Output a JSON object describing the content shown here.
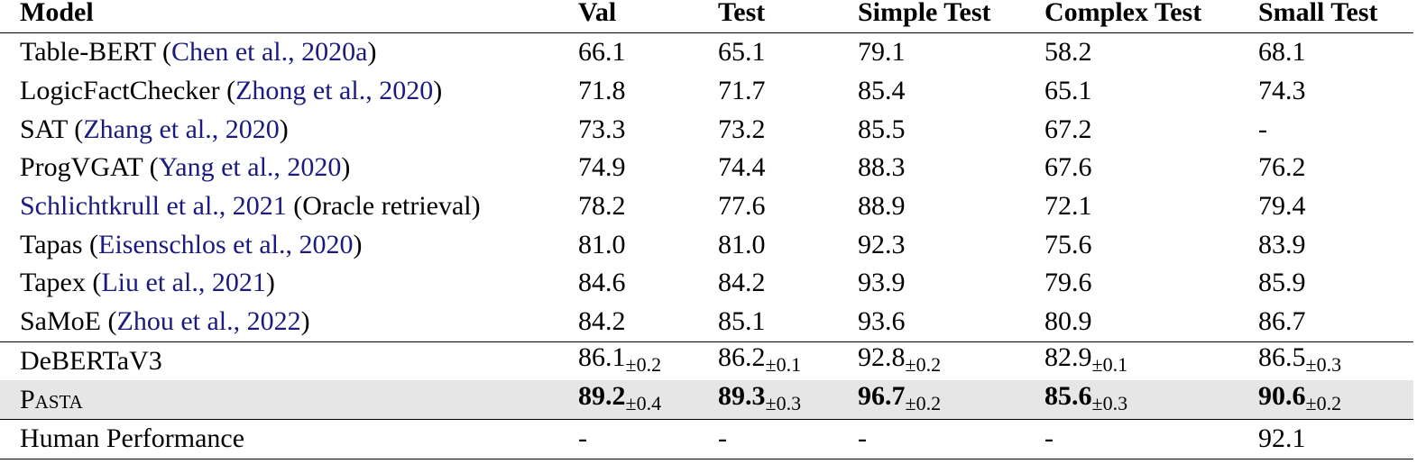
{
  "table": {
    "header": [
      "Model",
      "Val",
      "Test",
      "Simple Test",
      "Complex Test",
      "Small Test"
    ],
    "groups": [
      {
        "rows": [
          {
            "model": [
              {
                "text": "Table-BERT ("
              },
              {
                "text": "Chen et al., 2020a",
                "style": "cite"
              },
              {
                "text": ")"
              }
            ],
            "cells": [
              "66.1",
              "65.1",
              "79.1",
              "58.2",
              "68.1"
            ]
          },
          {
            "model": [
              {
                "text": "LogicFactChecker ("
              },
              {
                "text": "Zhong et al., 2020",
                "style": "cite"
              },
              {
                "text": ")"
              }
            ],
            "cells": [
              "71.8",
              "71.7",
              "85.4",
              "65.1",
              "74.3"
            ]
          },
          {
            "model": [
              {
                "text": "SAT ("
              },
              {
                "text": "Zhang et al., 2020",
                "style": "cite"
              },
              {
                "text": ")"
              }
            ],
            "cells": [
              "73.3",
              "73.2",
              "85.5",
              "67.2",
              "-"
            ]
          },
          {
            "model": [
              {
                "text": "ProgVGAT ("
              },
              {
                "text": "Yang et al., 2020",
                "style": "cite"
              },
              {
                "text": ")"
              }
            ],
            "cells": [
              "74.9",
              "74.4",
              "88.3",
              "67.6",
              "76.2"
            ]
          },
          {
            "model": [
              {
                "text": "Schlichtkrull et al., 2021",
                "style": "cite"
              },
              {
                "text": " (Oracle retrieval)"
              }
            ],
            "cells": [
              "78.2",
              "77.6",
              "88.9",
              "72.1",
              "79.4"
            ]
          },
          {
            "model": [
              {
                "text": "Tapas ("
              },
              {
                "text": "Eisenschlos et al., 2020",
                "style": "cite"
              },
              {
                "text": ")"
              }
            ],
            "cells": [
              "81.0",
              "81.0",
              "92.3",
              "75.6",
              "83.9"
            ]
          },
          {
            "model": [
              {
                "text": "Tapex ("
              },
              {
                "text": "Liu et al., 2021",
                "style": "cite"
              },
              {
                "text": ")"
              }
            ],
            "cells": [
              "84.6",
              "84.2",
              "93.9",
              "79.6",
              "85.9"
            ]
          },
          {
            "model": [
              {
                "text": "SaMoE ("
              },
              {
                "text": "Zhou et al., 2022",
                "style": "cite"
              },
              {
                "text": ")"
              }
            ],
            "cells": [
              "84.2",
              "85.1",
              "93.6",
              "80.9",
              "86.7"
            ]
          }
        ]
      },
      {
        "rows": [
          {
            "model": [
              {
                "text": "DeBERTaV3"
              }
            ],
            "cells": [
              {
                "value": "86.1",
                "std": "±0.2"
              },
              {
                "value": "86.2",
                "std": "±0.1"
              },
              {
                "value": "92.8",
                "std": "±0.2"
              },
              {
                "value": "82.9",
                "std": "±0.1"
              },
              {
                "value": "86.5",
                "std": "±0.3"
              }
            ]
          },
          {
            "model": [
              {
                "text": "Pasta",
                "style": "smallcaps"
              }
            ],
            "bold": true,
            "shaded": true,
            "cells": [
              {
                "value": "89.2",
                "std": "±0.4"
              },
              {
                "value": "89.3",
                "std": "±0.3"
              },
              {
                "value": "96.7",
                "std": "±0.2"
              },
              {
                "value": "85.6",
                "std": "±0.3"
              },
              {
                "value": "90.6",
                "std": "±0.2"
              }
            ]
          }
        ]
      },
      {
        "rows": [
          {
            "model": [
              {
                "text": "Human Performance"
              }
            ],
            "cells": [
              "-",
              "-",
              "-",
              "-",
              "92.1"
            ]
          }
        ]
      }
    ]
  }
}
